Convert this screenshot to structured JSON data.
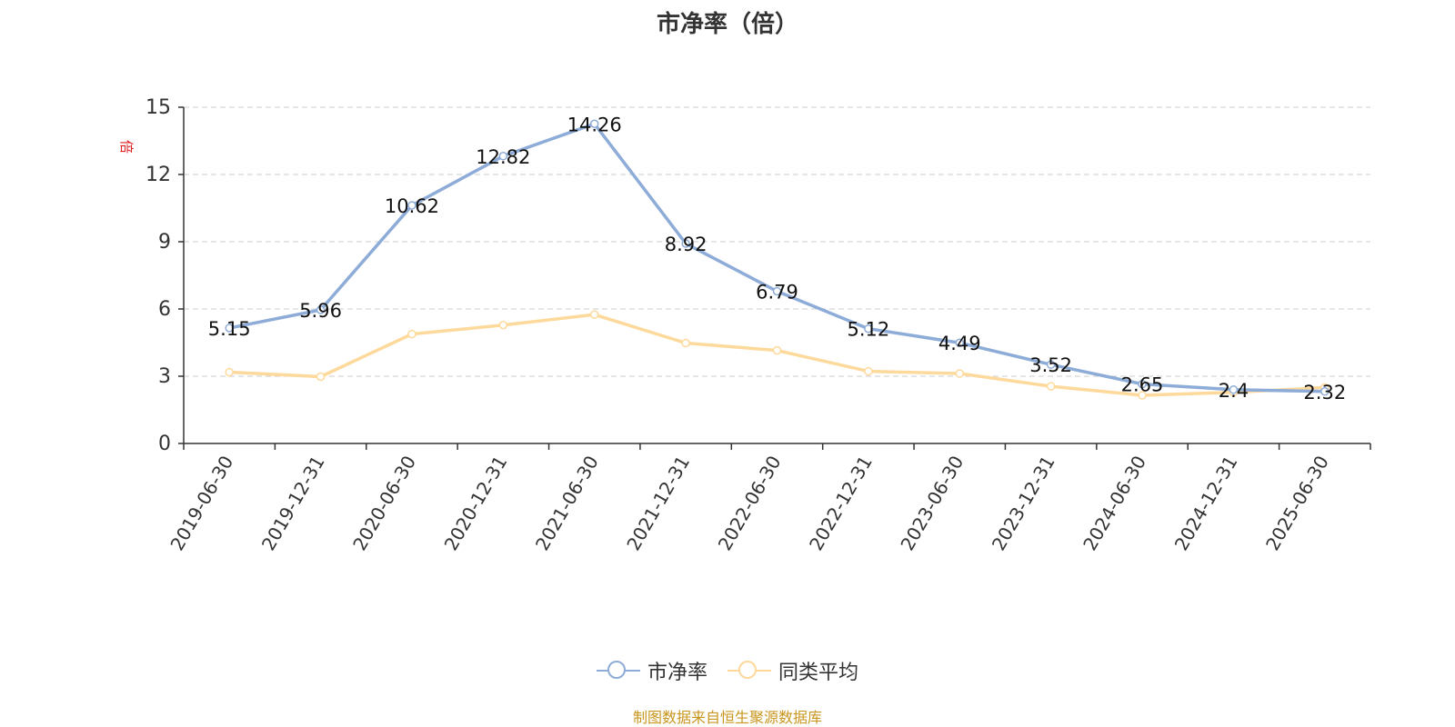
{
  "chart_data": {
    "type": "line",
    "title": "市净率（倍）",
    "y_unit": "倍",
    "categories": [
      "2019-06-30",
      "2019-12-31",
      "2020-06-30",
      "2020-12-31",
      "2021-06-30",
      "2021-12-31",
      "2022-06-30",
      "2022-12-31",
      "2023-06-30",
      "2023-12-31",
      "2024-06-30",
      "2024-12-31",
      "2025-06-30"
    ],
    "ylim": [
      0,
      15
    ],
    "yticks": [
      0,
      3,
      6,
      9,
      12,
      15
    ],
    "grid": true,
    "legend_position": "bottom",
    "series": [
      {
        "name": "市净率",
        "color": "#8eacd8",
        "show_labels": true,
        "values": [
          5.15,
          5.96,
          10.62,
          12.82,
          14.26,
          8.92,
          6.79,
          5.12,
          4.49,
          3.52,
          2.65,
          2.4,
          2.32
        ],
        "labels": [
          "5.15",
          "5.96",
          "10.62",
          "12.82",
          "14.26",
          "8.92",
          "6.79",
          "5.12",
          "4.49",
          "3.52",
          "2.65",
          "2.4",
          "2.32"
        ]
      },
      {
        "name": "同类平均",
        "color": "#fdd99b",
        "show_labels": false,
        "values": [
          3.18,
          2.98,
          4.88,
          5.28,
          5.75,
          4.48,
          4.15,
          3.22,
          3.12,
          2.55,
          2.15,
          2.28,
          2.5
        ]
      }
    ]
  },
  "source": "制图数据来自恒生聚源数据库"
}
